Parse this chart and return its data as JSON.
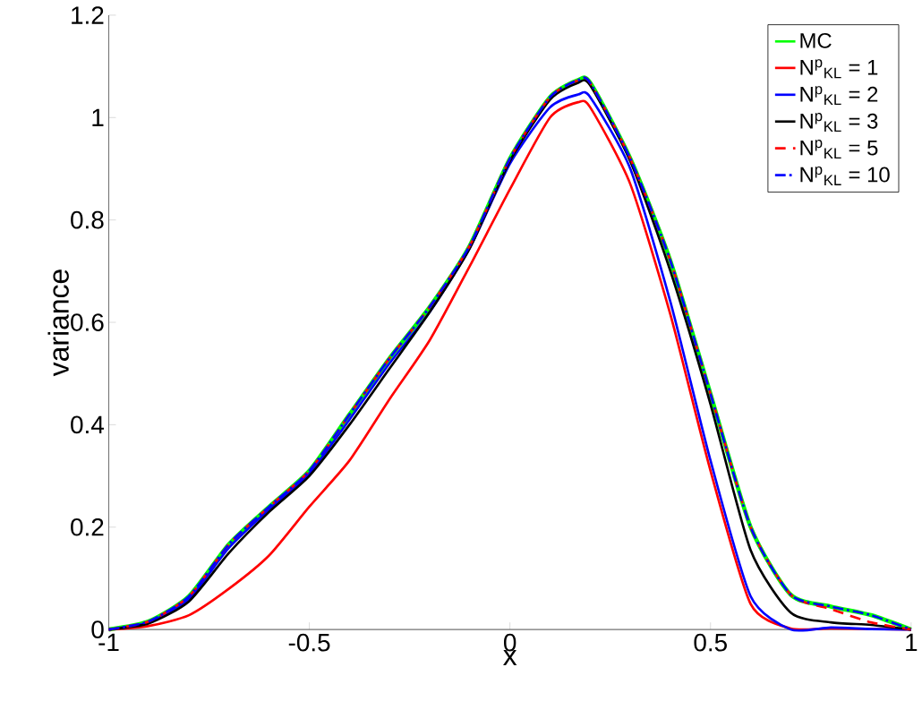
{
  "chart_data": {
    "type": "line",
    "xlabel": "x",
    "ylabel": "variance",
    "x": [
      -1,
      -0.9,
      -0.8,
      -0.7,
      -0.6,
      -0.5,
      -0.4,
      -0.3,
      -0.2,
      -0.1,
      0,
      0.1,
      0.17,
      0.2,
      0.3,
      0.4,
      0.5,
      0.6,
      0.7,
      0.8,
      0.9,
      1
    ],
    "series": [
      {
        "name": "MC",
        "color": "#00ff00",
        "line_style": "solid",
        "values": [
          0,
          0.016,
          0.065,
          0.167,
          0.24,
          0.31,
          0.42,
          0.53,
          0.63,
          0.75,
          0.92,
          1.04,
          1.073,
          1.068,
          0.92,
          0.72,
          0.46,
          0.2,
          0.068,
          0.045,
          0.028,
          0
        ]
      },
      {
        "name": "N$^{p}$$_{KL}$ = 1",
        "color": "#ff0000",
        "line_style": "solid",
        "values": [
          0,
          0.007,
          0.028,
          0.08,
          0.145,
          0.24,
          0.33,
          0.45,
          0.565,
          0.71,
          0.86,
          1.0,
          1.03,
          1.02,
          0.87,
          0.615,
          0.31,
          0.05,
          0.002,
          0.002,
          null,
          0
        ]
      },
      {
        "name": "N$^{p}$$_{KL}$ = 2",
        "color": "#0000ff",
        "line_style": "solid",
        "values": [
          0,
          0.014,
          0.06,
          0.16,
          0.235,
          0.305,
          0.41,
          0.52,
          0.62,
          0.745,
          0.91,
          1.02,
          1.045,
          1.04,
          0.9,
          0.64,
          0.33,
          0.065,
          0,
          0.004,
          0.001,
          0
        ]
      },
      {
        "name": "N$^{p}$$_{KL}$ = 3",
        "color": "#000000",
        "line_style": "solid",
        "values": [
          0,
          0.012,
          0.055,
          0.15,
          0.23,
          0.3,
          0.4,
          0.51,
          0.62,
          0.745,
          0.915,
          1.035,
          1.068,
          1.063,
          0.915,
          0.7,
          0.44,
          0.155,
          0.033,
          0.014,
          0.009,
          0
        ]
      },
      {
        "name": "N$^{p}$$_{KL}$ = 5",
        "color": "#ff0000",
        "line_style": "dashed",
        "values": [
          0,
          0.016,
          0.065,
          0.167,
          0.24,
          0.31,
          0.42,
          0.53,
          0.63,
          0.75,
          0.92,
          1.04,
          1.073,
          1.068,
          0.92,
          0.72,
          0.46,
          0.2,
          0.068,
          0.04,
          0.014,
          0
        ]
      },
      {
        "name": "N$^{p}$$_{KL}$ = 10",
        "color": "#0000ff",
        "line_style": "dashdot",
        "values": [
          0,
          0.016,
          0.065,
          0.167,
          0.24,
          0.31,
          0.42,
          0.53,
          0.63,
          0.75,
          0.92,
          1.04,
          1.073,
          1.068,
          0.92,
          0.72,
          0.46,
          0.2,
          0.068,
          0.045,
          0.028,
          0
        ]
      }
    ],
    "xlim": [
      -1,
      1
    ],
    "ylim": [
      0,
      1.2
    ],
    "xticks": [
      -1,
      -0.5,
      0,
      0.5,
      1
    ],
    "yticks": [
      0,
      0.2,
      0.4,
      0.6,
      0.8,
      1,
      1.2
    ],
    "grid": false,
    "legend": "top right"
  }
}
